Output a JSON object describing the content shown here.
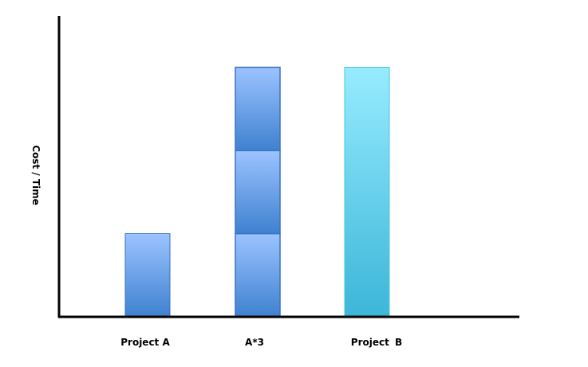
{
  "chart_data": {
    "type": "bar",
    "stacked": true,
    "title": "",
    "xlabel": "",
    "ylabel": "Cost / Time",
    "categories": [
      "Project A",
      "A*3",
      "Project B"
    ],
    "bars": [
      {
        "category": "Project A",
        "segments": [
          1
        ],
        "color": "#6a9ee8"
      },
      {
        "category": "A*3",
        "segments": [
          1,
          1,
          1
        ],
        "color": "#6a9ee8"
      },
      {
        "category": "Project B",
        "segments": [
          3
        ],
        "color": "#5dd3ee"
      }
    ],
    "ylim": [
      0,
      3.6
    ],
    "grid": false,
    "legend": "none",
    "axis_color": "#000000"
  }
}
